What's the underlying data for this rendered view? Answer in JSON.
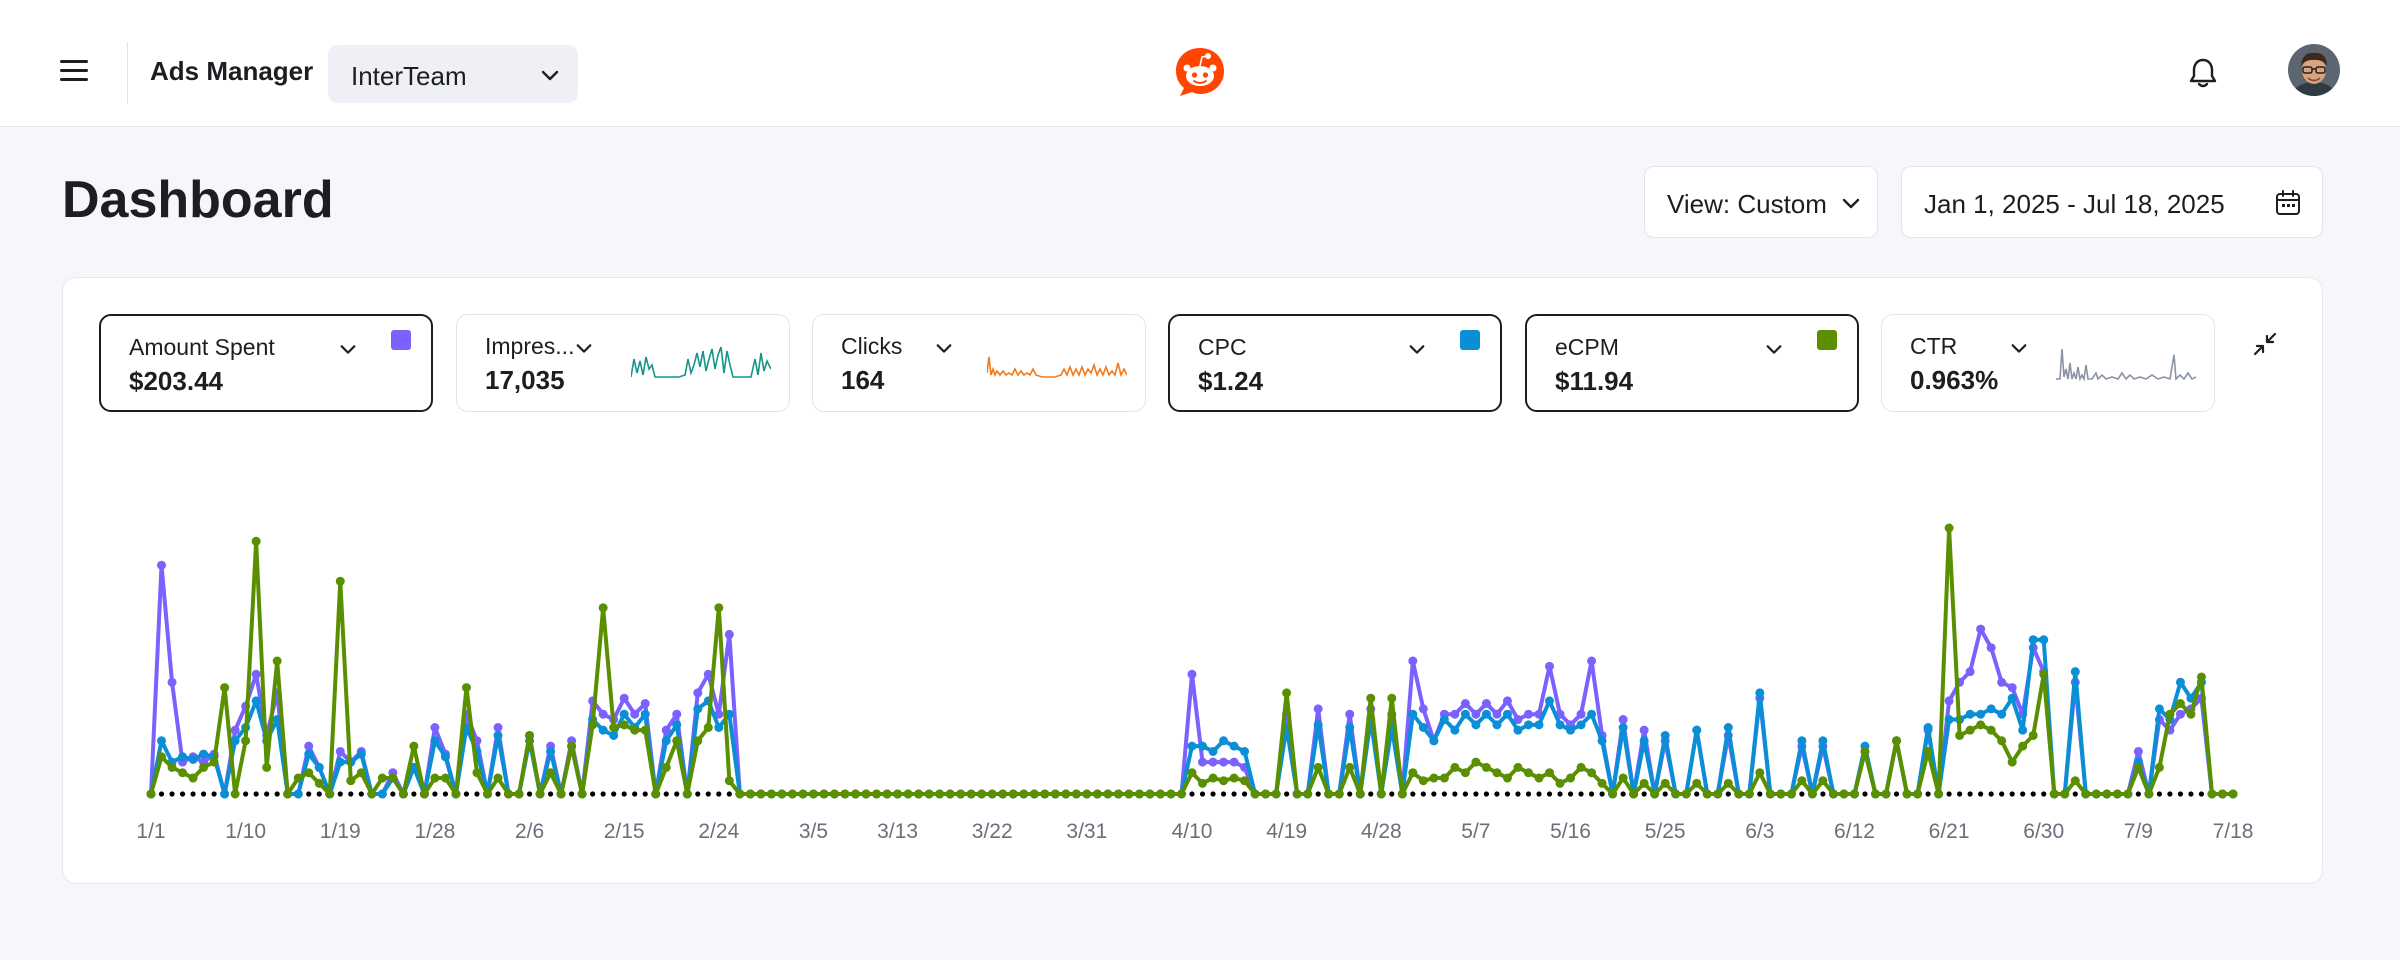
{
  "header": {
    "app_name": "Ads Manager",
    "team_select": "InterTeam",
    "logo_icon": "reddit-logo-icon",
    "menu_icon": "hamburger-menu-icon",
    "notification_icon": "bell-icon",
    "avatar_icon": "user-avatar"
  },
  "page": {
    "title": "Dashboard",
    "view_select": "View: Custom",
    "date_range": "Jan 1, 2025 - Jul 18, 2025"
  },
  "metrics": [
    {
      "label": "Amount Spent",
      "value": "$203.44",
      "selected": true,
      "color": "#7b61ff"
    },
    {
      "label": "Impres...",
      "value": "17,035",
      "selected": false,
      "spark_color": "#15958c"
    },
    {
      "label": "Clicks",
      "value": "164",
      "selected": false,
      "spark_color": "#f07a1c"
    },
    {
      "label": "CPC",
      "value": "$1.24",
      "selected": true,
      "color": "#0a8fd6"
    },
    {
      "label": "eCPM",
      "value": "$11.94",
      "selected": true,
      "color": "#5a8f00"
    },
    {
      "label": "CTR",
      "value": "0.963%",
      "selected": false,
      "spark_color": "#8b94a3"
    }
  ],
  "chart_data": {
    "type": "line",
    "x_start": "1/1",
    "x_tick_labels": [
      "1/1",
      "1/10",
      "1/19",
      "1/28",
      "2/6",
      "2/15",
      "2/24",
      "3/5",
      "3/13",
      "3/22",
      "3/31",
      "4/10",
      "4/19",
      "4/28",
      "5/7",
      "5/16",
      "5/25",
      "6/3",
      "6/12",
      "6/21",
      "6/30",
      "7/9",
      "7/18"
    ],
    "tick_indices": [
      0,
      9,
      18,
      27,
      36,
      45,
      54,
      63,
      71,
      80,
      89,
      99,
      108,
      117,
      126,
      135,
      144,
      153,
      162,
      171,
      180,
      189,
      198
    ],
    "num_points": 199,
    "y_axis_visible": false,
    "grid": false,
    "series": [
      {
        "name": "Amount Spent",
        "color": "#7b61ff",
        "spikes": [
          [
            1,
            0.86
          ],
          [
            2,
            0.42
          ],
          [
            3,
            0.12
          ],
          [
            4,
            0.14
          ],
          [
            5,
            0.12
          ],
          [
            6,
            0.15
          ],
          [
            8,
            0.24
          ],
          [
            9,
            0.33
          ],
          [
            10,
            0.45
          ],
          [
            11,
            0.22
          ],
          [
            12,
            0.38
          ],
          [
            15,
            0.18
          ],
          [
            16,
            0.1
          ],
          [
            18,
            0.16
          ],
          [
            19,
            0.12
          ],
          [
            20,
            0.16
          ],
          [
            23,
            0.08
          ],
          [
            25,
            0.1
          ],
          [
            27,
            0.25
          ],
          [
            28,
            0.15
          ],
          [
            30,
            0.3
          ],
          [
            31,
            0.2
          ],
          [
            33,
            0.25
          ],
          [
            36,
            0.22
          ],
          [
            38,
            0.18
          ],
          [
            40,
            0.2
          ],
          [
            42,
            0.35
          ],
          [
            43,
            0.3
          ],
          [
            44,
            0.28
          ],
          [
            45,
            0.36
          ],
          [
            46,
            0.3
          ],
          [
            47,
            0.34
          ],
          [
            49,
            0.24
          ],
          [
            50,
            0.3
          ],
          [
            52,
            0.38
          ],
          [
            53,
            0.45
          ],
          [
            54,
            0.3
          ],
          [
            55,
            0.6
          ],
          [
            99,
            0.45
          ],
          [
            100,
            0.12
          ],
          [
            101,
            0.12
          ],
          [
            102,
            0.12
          ],
          [
            103,
            0.12
          ],
          [
            104,
            0.1
          ],
          [
            108,
            0.3
          ],
          [
            111,
            0.32
          ],
          [
            114,
            0.3
          ],
          [
            116,
            0.32
          ],
          [
            118,
            0.3
          ],
          [
            120,
            0.5
          ],
          [
            121,
            0.32
          ],
          [
            122,
            0.2
          ],
          [
            123,
            0.3
          ],
          [
            124,
            0.3
          ],
          [
            125,
            0.34
          ],
          [
            126,
            0.3
          ],
          [
            127,
            0.34
          ],
          [
            128,
            0.3
          ],
          [
            129,
            0.35
          ],
          [
            130,
            0.28
          ],
          [
            131,
            0.3
          ],
          [
            132,
            0.3
          ],
          [
            133,
            0.48
          ],
          [
            134,
            0.3
          ],
          [
            135,
            0.26
          ],
          [
            136,
            0.3
          ],
          [
            137,
            0.5
          ],
          [
            138,
            0.22
          ],
          [
            140,
            0.28
          ],
          [
            142,
            0.24
          ],
          [
            144,
            0.2
          ],
          [
            147,
            0.24
          ],
          [
            150,
            0.22
          ],
          [
            153,
            0.36
          ],
          [
            157,
            0.18
          ],
          [
            159,
            0.18
          ],
          [
            163,
            0.16
          ],
          [
            166,
            0.2
          ],
          [
            169,
            0.24
          ],
          [
            171,
            0.35
          ],
          [
            172,
            0.42
          ],
          [
            173,
            0.46
          ],
          [
            174,
            0.62
          ],
          [
            175,
            0.55
          ],
          [
            176,
            0.42
          ],
          [
            177,
            0.4
          ],
          [
            178,
            0.3
          ],
          [
            179,
            0.55
          ],
          [
            180,
            0.46
          ],
          [
            183,
            0.42
          ],
          [
            189,
            0.16
          ],
          [
            191,
            0.28
          ],
          [
            192,
            0.24
          ],
          [
            193,
            0.3
          ],
          [
            194,
            0.32
          ],
          [
            195,
            0.36
          ]
        ]
      },
      {
        "name": "CPC",
        "color": "#0a8fd6",
        "spikes": [
          [
            1,
            0.2
          ],
          [
            2,
            0.12
          ],
          [
            3,
            0.14
          ],
          [
            4,
            0.13
          ],
          [
            5,
            0.15
          ],
          [
            6,
            0.14
          ],
          [
            8,
            0.2
          ],
          [
            9,
            0.25
          ],
          [
            10,
            0.35
          ],
          [
            11,
            0.2
          ],
          [
            12,
            0.28
          ],
          [
            15,
            0.15
          ],
          [
            16,
            0.1
          ],
          [
            18,
            0.12
          ],
          [
            19,
            0.12
          ],
          [
            20,
            0.15
          ],
          [
            23,
            0.06
          ],
          [
            25,
            0.1
          ],
          [
            27,
            0.2
          ],
          [
            28,
            0.14
          ],
          [
            30,
            0.25
          ],
          [
            31,
            0.16
          ],
          [
            33,
            0.22
          ],
          [
            36,
            0.2
          ],
          [
            38,
            0.16
          ],
          [
            40,
            0.18
          ],
          [
            42,
            0.28
          ],
          [
            43,
            0.24
          ],
          [
            44,
            0.22
          ],
          [
            45,
            0.3
          ],
          [
            46,
            0.25
          ],
          [
            47,
            0.3
          ],
          [
            49,
            0.2
          ],
          [
            50,
            0.26
          ],
          [
            52,
            0.32
          ],
          [
            53,
            0.35
          ],
          [
            54,
            0.25
          ],
          [
            55,
            0.3
          ],
          [
            99,
            0.18
          ],
          [
            100,
            0.18
          ],
          [
            101,
            0.16
          ],
          [
            102,
            0.2
          ],
          [
            103,
            0.18
          ],
          [
            104,
            0.16
          ],
          [
            108,
            0.25
          ],
          [
            111,
            0.26
          ],
          [
            114,
            0.25
          ],
          [
            116,
            0.28
          ],
          [
            118,
            0.25
          ],
          [
            120,
            0.3
          ],
          [
            121,
            0.25
          ],
          [
            122,
            0.2
          ],
          [
            123,
            0.28
          ],
          [
            124,
            0.24
          ],
          [
            125,
            0.3
          ],
          [
            126,
            0.26
          ],
          [
            127,
            0.3
          ],
          [
            128,
            0.26
          ],
          [
            129,
            0.3
          ],
          [
            130,
            0.24
          ],
          [
            131,
            0.26
          ],
          [
            132,
            0.26
          ],
          [
            133,
            0.35
          ],
          [
            134,
            0.26
          ],
          [
            135,
            0.24
          ],
          [
            136,
            0.26
          ],
          [
            137,
            0.3
          ],
          [
            138,
            0.2
          ],
          [
            140,
            0.25
          ],
          [
            142,
            0.2
          ],
          [
            144,
            0.22
          ],
          [
            147,
            0.24
          ],
          [
            150,
            0.25
          ],
          [
            153,
            0.38
          ],
          [
            157,
            0.2
          ],
          [
            159,
            0.2
          ],
          [
            163,
            0.18
          ],
          [
            166,
            0.2
          ],
          [
            169,
            0.25
          ],
          [
            171,
            0.28
          ],
          [
            172,
            0.28
          ],
          [
            173,
            0.3
          ],
          [
            174,
            0.3
          ],
          [
            175,
            0.32
          ],
          [
            176,
            0.3
          ],
          [
            177,
            0.36
          ],
          [
            178,
            0.24
          ],
          [
            179,
            0.58
          ],
          [
            180,
            0.58
          ],
          [
            183,
            0.46
          ],
          [
            189,
            0.12
          ],
          [
            191,
            0.32
          ],
          [
            192,
            0.28
          ],
          [
            193,
            0.42
          ],
          [
            194,
            0.36
          ],
          [
            195,
            0.42
          ]
        ]
      },
      {
        "name": "eCPM",
        "color": "#5a8f00",
        "spikes": [
          [
            1,
            0.14
          ],
          [
            2,
            0.1
          ],
          [
            3,
            0.08
          ],
          [
            4,
            0.06
          ],
          [
            5,
            0.1
          ],
          [
            6,
            0.12
          ],
          [
            7,
            0.4
          ],
          [
            9,
            0.2
          ],
          [
            10,
            0.95
          ],
          [
            11,
            0.1
          ],
          [
            12,
            0.5
          ],
          [
            14,
            0.06
          ],
          [
            15,
            0.08
          ],
          [
            16,
            0.04
          ],
          [
            18,
            0.8
          ],
          [
            19,
            0.05
          ],
          [
            20,
            0.08
          ],
          [
            22,
            0.06
          ],
          [
            23,
            0.06
          ],
          [
            25,
            0.18
          ],
          [
            27,
            0.06
          ],
          [
            28,
            0.06
          ],
          [
            30,
            0.4
          ],
          [
            31,
            0.08
          ],
          [
            33,
            0.06
          ],
          [
            36,
            0.22
          ],
          [
            38,
            0.08
          ],
          [
            40,
            0.18
          ],
          [
            42,
            0.26
          ],
          [
            43,
            0.7
          ],
          [
            44,
            0.25
          ],
          [
            45,
            0.26
          ],
          [
            46,
            0.24
          ],
          [
            47,
            0.24
          ],
          [
            49,
            0.1
          ],
          [
            50,
            0.2
          ],
          [
            52,
            0.2
          ],
          [
            53,
            0.25
          ],
          [
            54,
            0.7
          ],
          [
            55,
            0.05
          ],
          [
            99,
            0.08
          ],
          [
            100,
            0.04
          ],
          [
            101,
            0.06
          ],
          [
            102,
            0.05
          ],
          [
            103,
            0.06
          ],
          [
            104,
            0.05
          ],
          [
            108,
            0.38
          ],
          [
            111,
            0.1
          ],
          [
            114,
            0.1
          ],
          [
            116,
            0.36
          ],
          [
            118,
            0.36
          ],
          [
            120,
            0.08
          ],
          [
            121,
            0.05
          ],
          [
            122,
            0.06
          ],
          [
            123,
            0.06
          ],
          [
            124,
            0.1
          ],
          [
            125,
            0.08
          ],
          [
            126,
            0.12
          ],
          [
            127,
            0.1
          ],
          [
            128,
            0.08
          ],
          [
            129,
            0.06
          ],
          [
            130,
            0.1
          ],
          [
            131,
            0.08
          ],
          [
            132,
            0.06
          ],
          [
            133,
            0.08
          ],
          [
            134,
            0.04
          ],
          [
            135,
            0.06
          ],
          [
            136,
            0.1
          ],
          [
            137,
            0.08
          ],
          [
            138,
            0.04
          ],
          [
            140,
            0.06
          ],
          [
            142,
            0.04
          ],
          [
            144,
            0.04
          ],
          [
            147,
            0.04
          ],
          [
            150,
            0.04
          ],
          [
            153,
            0.08
          ],
          [
            157,
            0.05
          ],
          [
            159,
            0.05
          ],
          [
            163,
            0.16
          ],
          [
            166,
            0.2
          ],
          [
            169,
            0.16
          ],
          [
            171,
            1.0
          ],
          [
            172,
            0.22
          ],
          [
            173,
            0.24
          ],
          [
            174,
            0.26
          ],
          [
            175,
            0.24
          ],
          [
            176,
            0.2
          ],
          [
            177,
            0.12
          ],
          [
            178,
            0.18
          ],
          [
            179,
            0.22
          ],
          [
            180,
            0.45
          ],
          [
            183,
            0.05
          ],
          [
            189,
            0.1
          ],
          [
            191,
            0.1
          ],
          [
            192,
            0.3
          ],
          [
            193,
            0.34
          ],
          [
            194,
            0.3
          ],
          [
            195,
            0.44
          ]
        ]
      },
      {
        "name": "Baseline",
        "color": "#000000",
        "dotted": true,
        "values": "all zero"
      }
    ]
  }
}
